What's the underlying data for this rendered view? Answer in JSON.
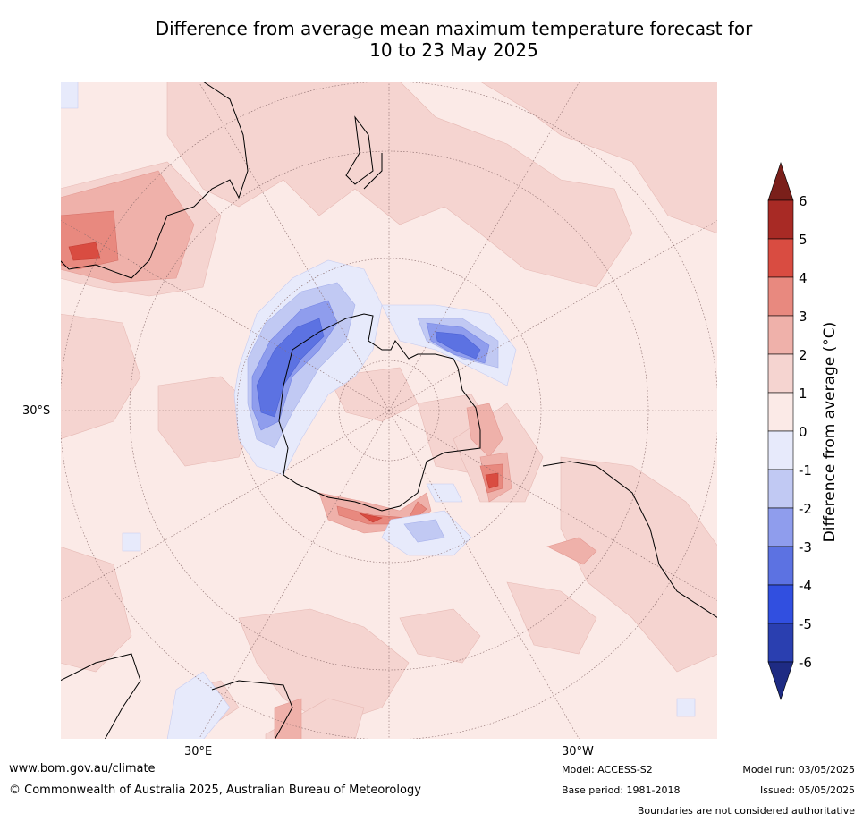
{
  "title": {
    "line1": "Difference from average mean maximum temperature forecast for",
    "line2": "10 to 23 May 2025"
  },
  "map": {
    "lat_label": "30°S",
    "lon_label_east": "30°E",
    "lon_label_west": "30°W",
    "projection": "south-polar-stereographic"
  },
  "colorbar": {
    "label": "Difference from average (°C)",
    "ticks": [
      "6",
      "5",
      "4",
      "3",
      "2",
      "1",
      "0",
      "-1",
      "-2",
      "-3",
      "-4",
      "-5",
      "-6"
    ],
    "colors": {
      "above6": "#7a1f1a",
      "5to6": "#a82a25",
      "4to5": "#d94c41",
      "3to4": "#e8897f",
      "2to3": "#efb1aa",
      "1to2": "#f5d4d0",
      "0to1": "#fbeae7",
      "m1to0": "#e7eafb",
      "m2tom1": "#c1c9f3",
      "m3tom2": "#8f9ded",
      "m4tom3": "#5c72e2",
      "m5tom4": "#314fe0",
      "m6tom5": "#2a3fb0",
      "below6": "#1e2b83"
    }
  },
  "footer": {
    "website": "www.bom.gov.au/climate",
    "copyright": "© Commonwealth of Australia 2025, Australian Bureau of Meteorology",
    "model": "Model: ACCESS-S2",
    "base_period": "Base period: 1981-2018",
    "model_run": "Model run: 03/05/2025",
    "issued": "Issued: 05/05/2025",
    "disclaimer": "Boundaries are not considered authoritative"
  }
}
